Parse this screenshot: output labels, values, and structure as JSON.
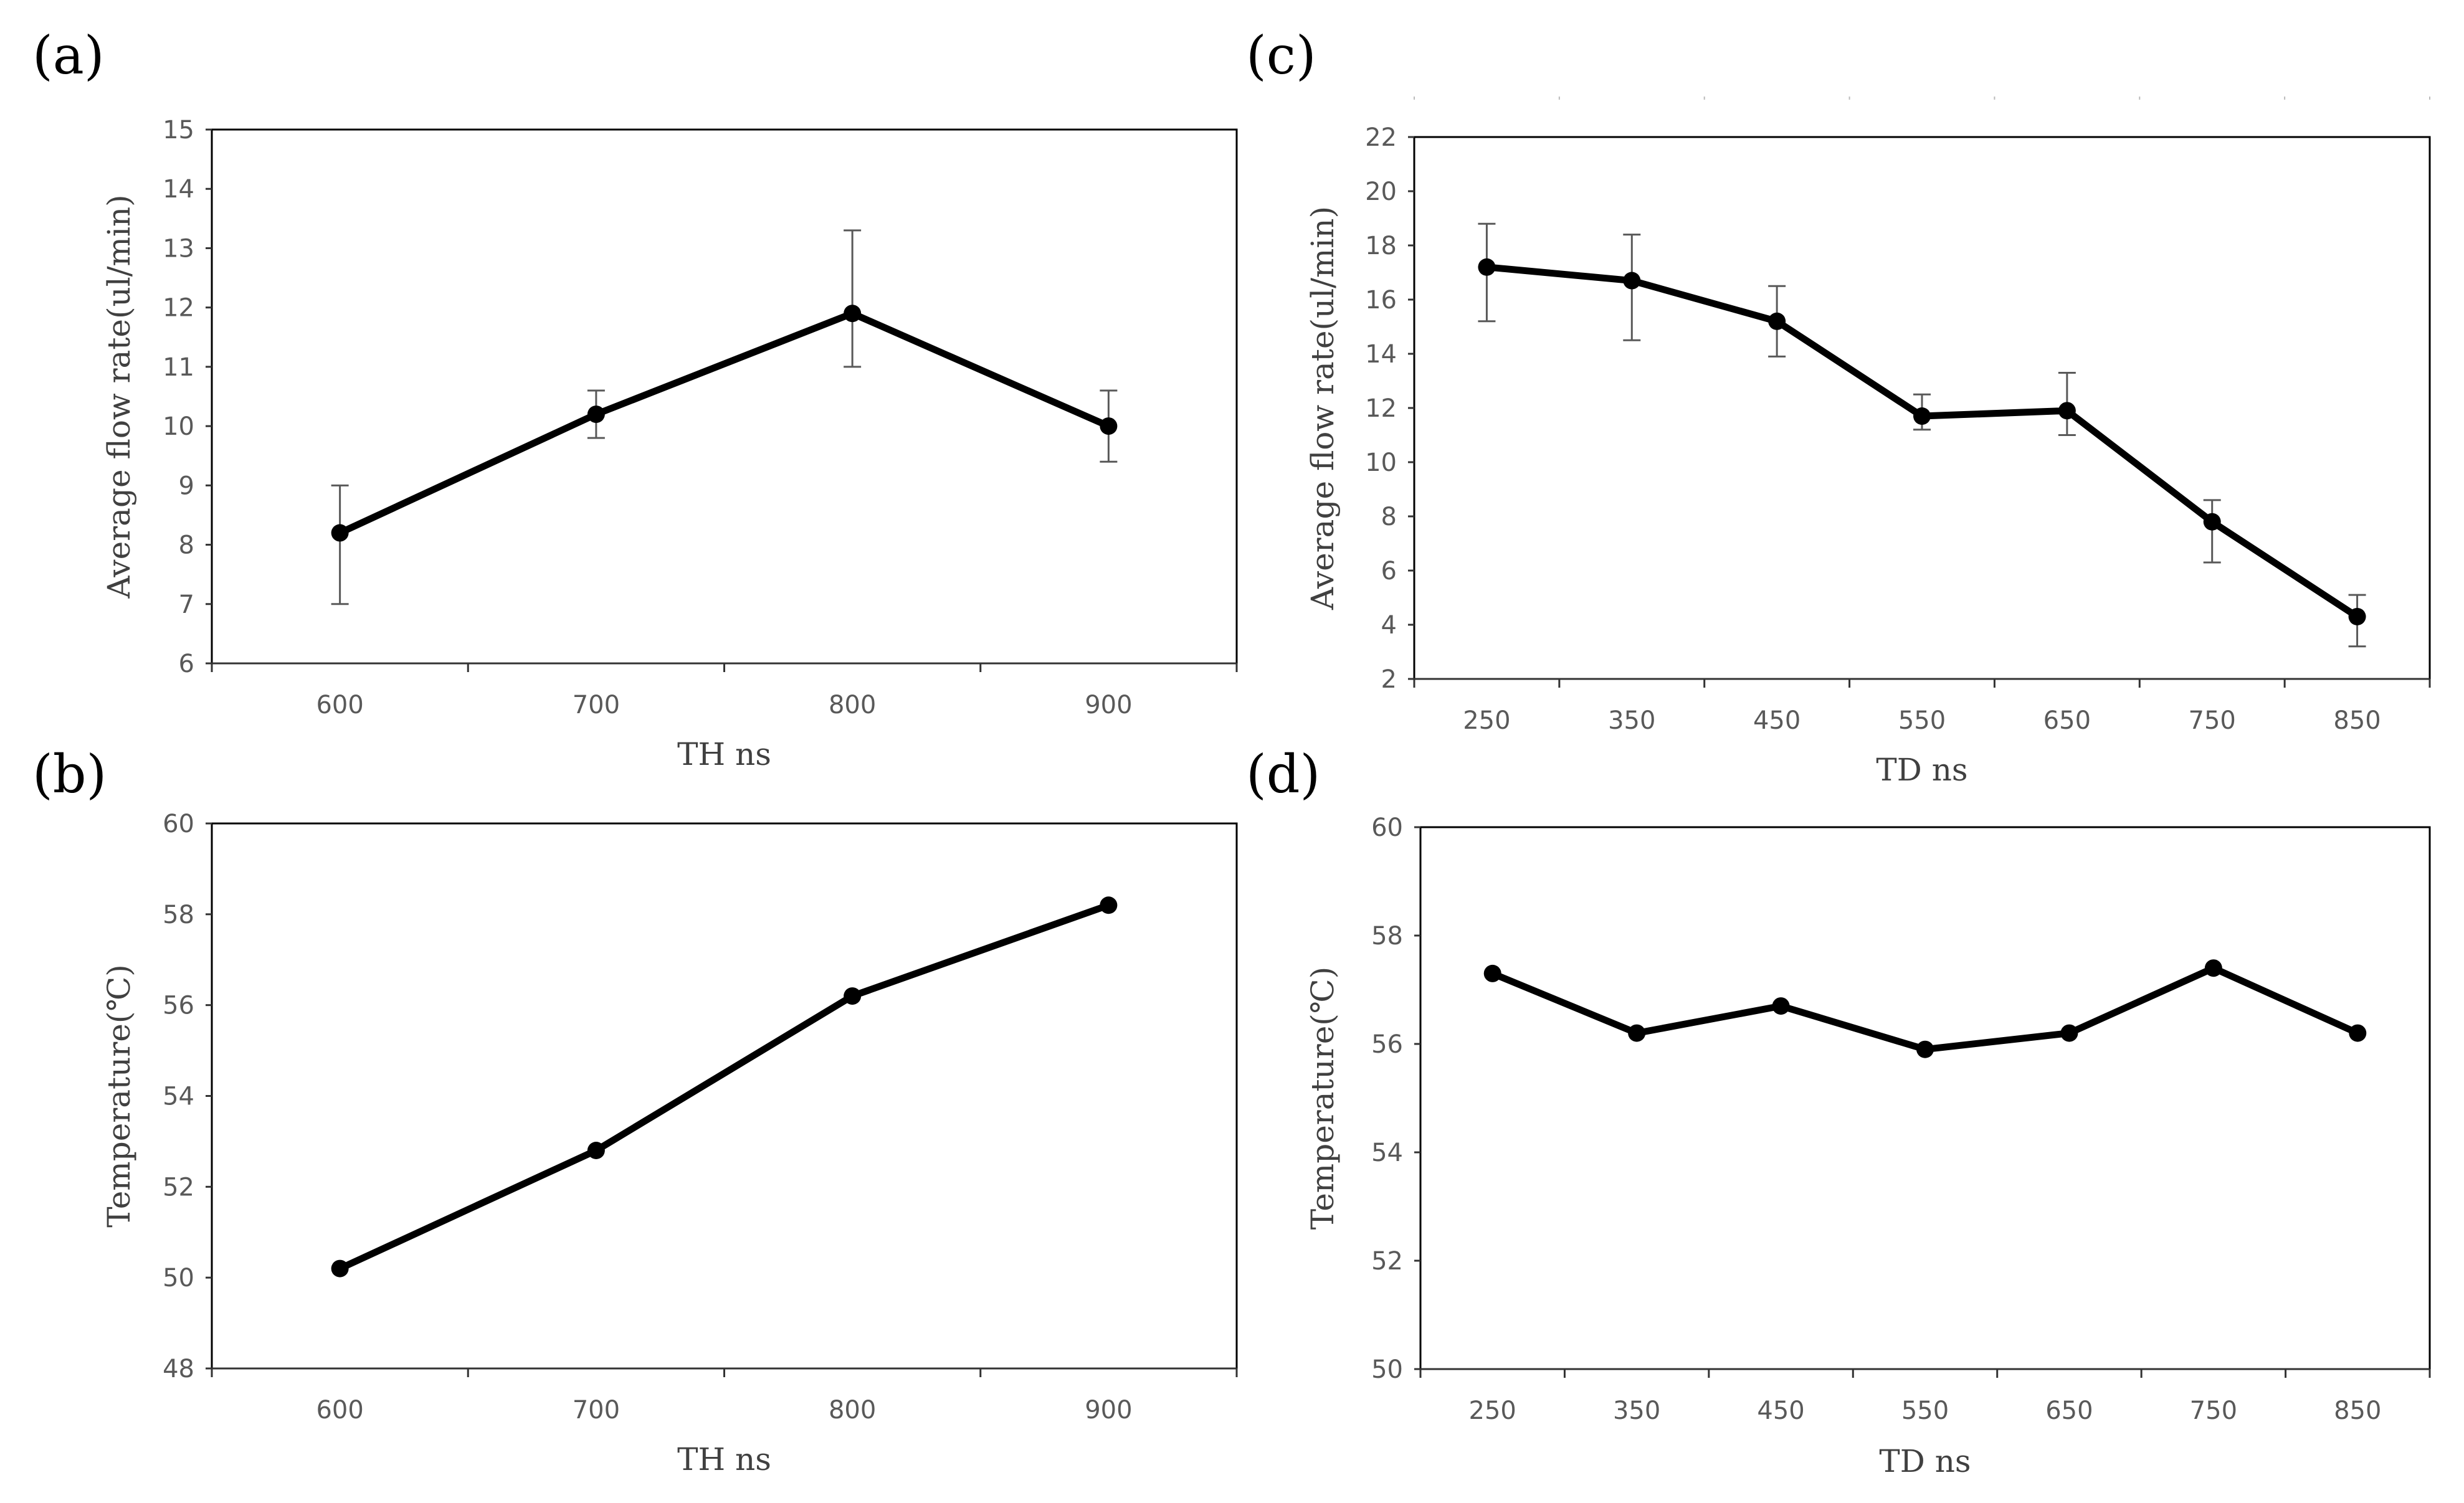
{
  "chart_data": [
    {
      "id": "a",
      "panel_label": "(a)",
      "type": "line",
      "x": [
        600,
        700,
        800,
        900
      ],
      "categories": [
        "600",
        "700",
        "800",
        "900"
      ],
      "values": [
        8.2,
        10.2,
        11.9,
        10.0
      ],
      "error_upper": [
        9.0,
        10.6,
        13.3,
        10.6
      ],
      "error_lower": [
        7.0,
        9.8,
        11.0,
        9.4
      ],
      "ylim": [
        6,
        15
      ],
      "yticks": [
        "6",
        "7",
        "8",
        "9",
        "10",
        "11",
        "12",
        "13",
        "14",
        "15"
      ],
      "xlabel": "TH  ns",
      "ylabel": "Average flow rate(ul/min)"
    },
    {
      "id": "b",
      "panel_label": "(b)",
      "type": "line",
      "x": [
        600,
        700,
        800,
        900
      ],
      "categories": [
        "600",
        "700",
        "800",
        "900"
      ],
      "values": [
        50.2,
        52.8,
        56.2,
        58.2
      ],
      "ylim": [
        48,
        60
      ],
      "yticks": [
        "48",
        "50",
        "52",
        "54",
        "56",
        "58",
        "60"
      ],
      "xlabel": "TH  ns",
      "ylabel": "Temperature(℃)"
    },
    {
      "id": "c",
      "panel_label": "(c)",
      "type": "line",
      "x": [
        250,
        350,
        450,
        550,
        650,
        750,
        850
      ],
      "categories": [
        "250",
        "350",
        "450",
        "550",
        "650",
        "750",
        "850"
      ],
      "values": [
        17.2,
        16.7,
        15.2,
        11.7,
        11.9,
        7.8,
        4.3
      ],
      "error_upper": [
        18.8,
        18.4,
        16.5,
        12.5,
        13.3,
        8.6,
        5.1
      ],
      "error_lower": [
        15.2,
        14.5,
        13.9,
        11.2,
        11.0,
        6.3,
        3.2
      ],
      "ylim": [
        2,
        22
      ],
      "yticks": [
        "2",
        "4",
        "6",
        "8",
        "10",
        "12",
        "14",
        "16",
        "18",
        "20",
        "22"
      ],
      "xlabel": "TD  ns",
      "ylabel": "Average flow rate(ul/min)"
    },
    {
      "id": "d",
      "panel_label": "(d)",
      "type": "line",
      "x": [
        250,
        350,
        450,
        550,
        650,
        750,
        850
      ],
      "categories": [
        "250",
        "350",
        "450",
        "550",
        "650",
        "750",
        "850"
      ],
      "values": [
        57.3,
        56.2,
        56.7,
        55.9,
        56.2,
        57.4,
        56.2
      ],
      "ylim": [
        50,
        60
      ],
      "yticks": [
        "50",
        "52",
        "54",
        "56",
        "58",
        "60"
      ],
      "xlabel": "TD  ns",
      "ylabel": "Temperature(℃)"
    }
  ]
}
